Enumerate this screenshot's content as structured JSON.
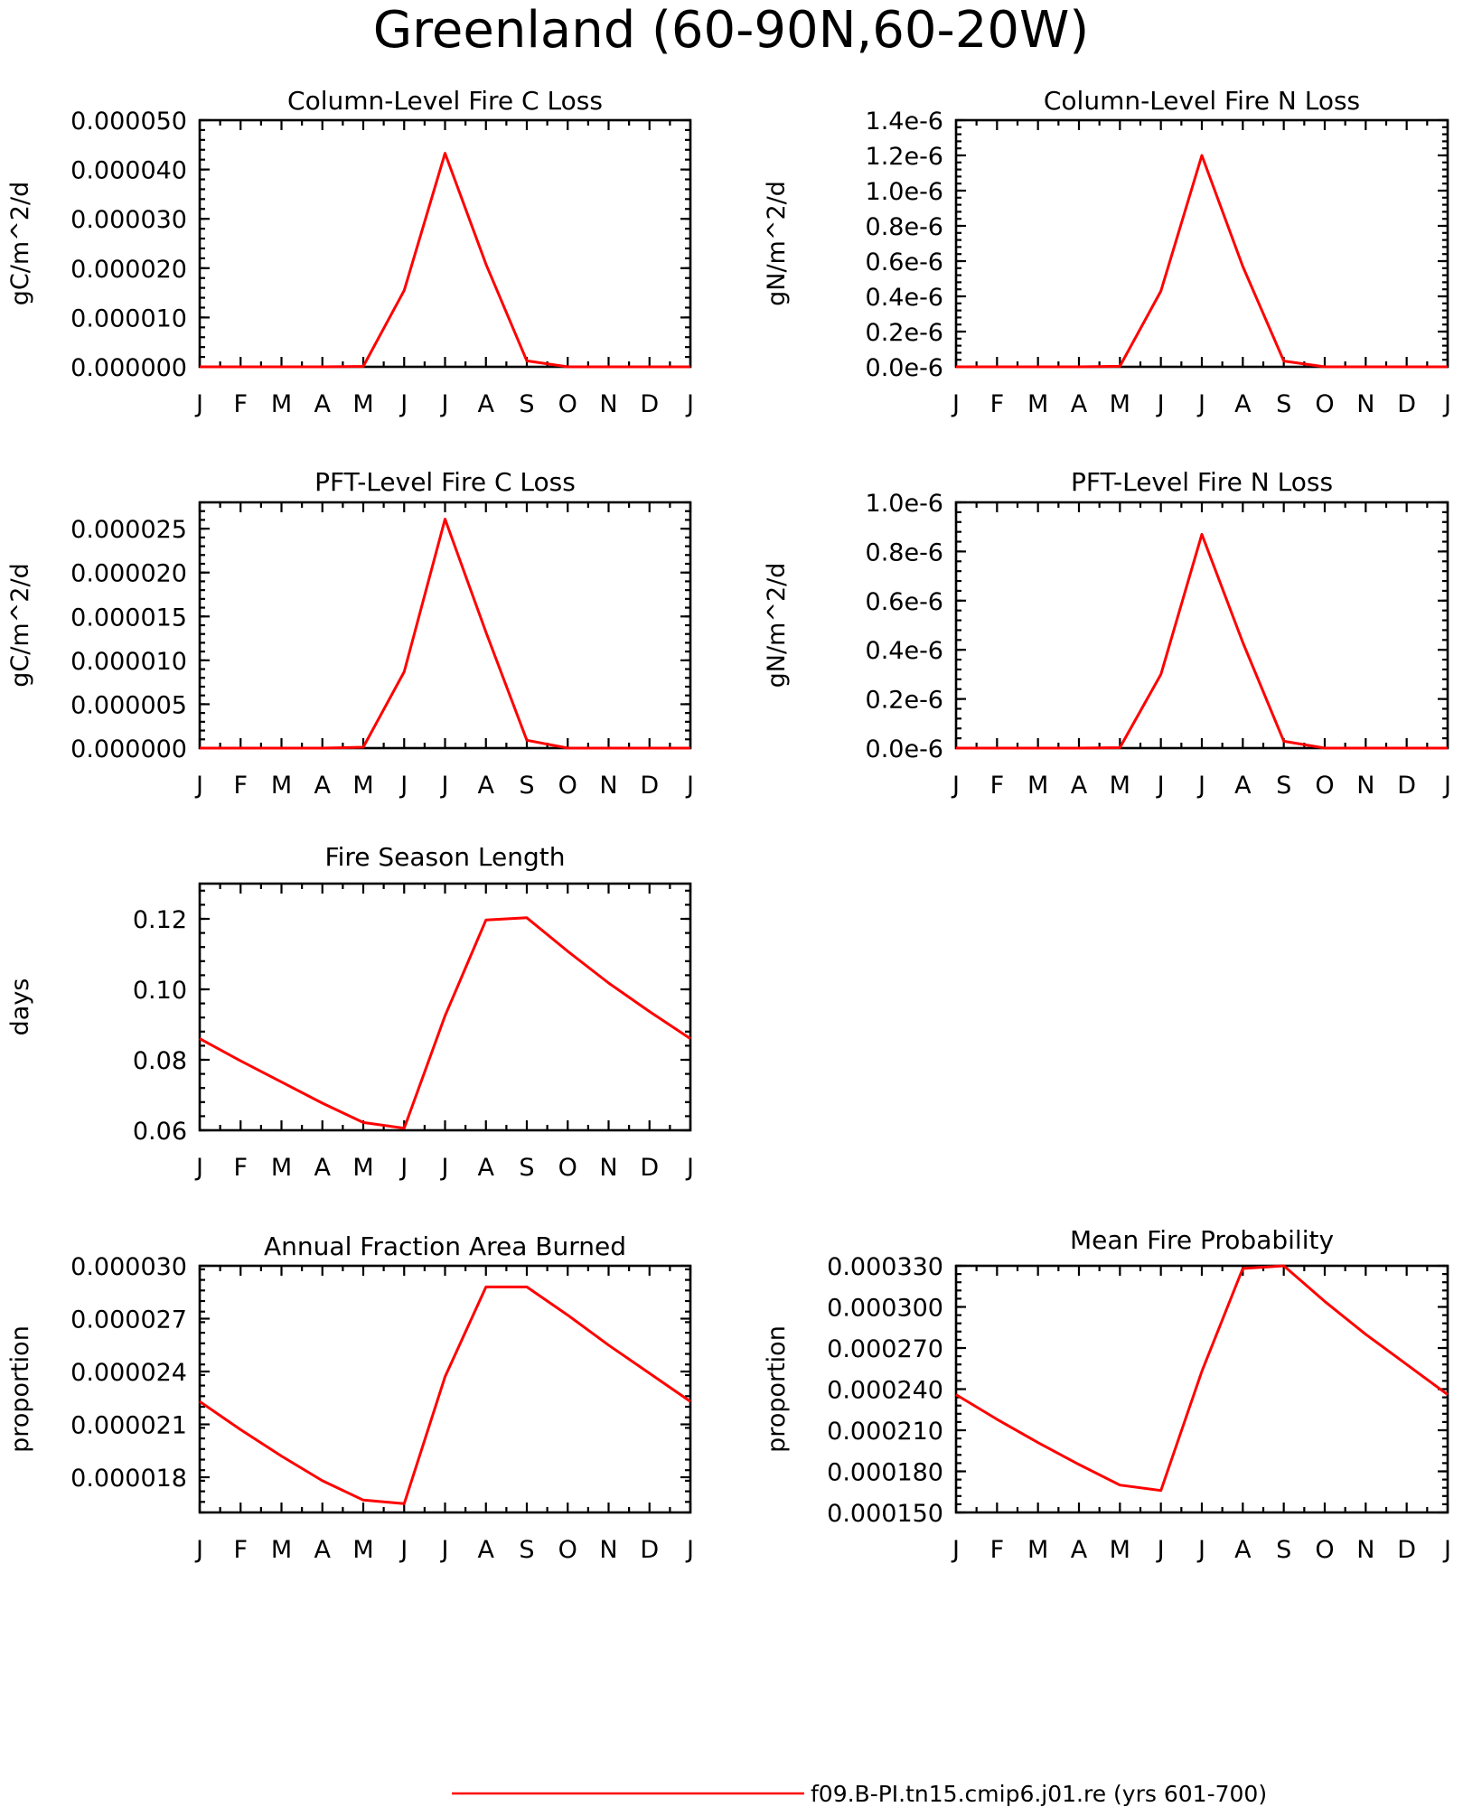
{
  "title": "Greenland (60-90N,60-20W)",
  "legend": {
    "label": "f09.B-PI.tn15.cmip6.j01.re (yrs 601-700)"
  },
  "colors": {
    "series": "#ff0000",
    "axis": "#000000"
  },
  "chart_data": [
    {
      "type": "line",
      "title": "Column-Level Fire C Loss",
      "ylabel": "gC/m^2/d",
      "xlabel": "",
      "categories": [
        "J",
        "F",
        "M",
        "A",
        "M",
        "J",
        "J",
        "A",
        "S",
        "O",
        "N",
        "D",
        "J"
      ],
      "ylim": [
        0,
        5e-05
      ],
      "yticks": [
        0,
        1e-05,
        2e-05,
        3e-05,
        4e-05,
        5e-05
      ],
      "ytick_labels": [
        "0.000000",
        "0.000010",
        "0.000020",
        "0.000030",
        "0.000040",
        "0.000050"
      ],
      "series": [
        {
          "values": [
            0,
            0,
            0,
            0,
            1e-07,
            1.55e-05,
            4.33e-05,
            2.08e-05,
            1.2e-06,
            0,
            0,
            0,
            0
          ]
        }
      ],
      "grid": false
    },
    {
      "type": "line",
      "title": "Column-Level Fire N Loss",
      "ylabel": "gN/m^2/d",
      "xlabel": "",
      "categories": [
        "J",
        "F",
        "M",
        "A",
        "M",
        "J",
        "J",
        "A",
        "S",
        "O",
        "N",
        "D",
        "J"
      ],
      "ylim": [
        0,
        1.4e-06
      ],
      "yticks": [
        0,
        2e-07,
        4e-07,
        6e-07,
        8e-07,
        1e-06,
        1.2e-06,
        1.4e-06
      ],
      "ytick_labels": [
        "0.0e-6",
        "0.2e-6",
        "0.4e-6",
        "0.6e-6",
        "0.8e-6",
        "1.0e-6",
        "1.2e-6",
        "1.4e-6"
      ],
      "series": [
        {
          "values": [
            0,
            0,
            0,
            0,
            3e-09,
            4.3e-07,
            1.2e-06,
            5.7e-07,
            3.3e-08,
            0,
            0,
            0,
            0
          ]
        }
      ],
      "grid": false
    },
    {
      "type": "line",
      "title": "PFT-Level Fire C Loss",
      "ylabel": "gC/m^2/d",
      "xlabel": "",
      "categories": [
        "J",
        "F",
        "M",
        "A",
        "M",
        "J",
        "J",
        "A",
        "S",
        "O",
        "N",
        "D",
        "J"
      ],
      "ylim": [
        0,
        2.8e-05
      ],
      "yticks": [
        0,
        5e-06,
        1e-05,
        1.5e-05,
        2e-05,
        2.5e-05
      ],
      "ytick_labels": [
        "0.000000",
        "0.000005",
        "0.000010",
        "0.000015",
        "0.000020",
        "0.000025"
      ],
      "series": [
        {
          "values": [
            0,
            0,
            0,
            0,
            1e-07,
            8.7e-06,
            2.61e-05,
            1.32e-05,
            9e-07,
            0,
            0,
            0,
            0
          ]
        }
      ],
      "grid": false
    },
    {
      "type": "line",
      "title": "PFT-Level Fire N Loss",
      "ylabel": "gN/m^2/d",
      "xlabel": "",
      "categories": [
        "J",
        "F",
        "M",
        "A",
        "M",
        "J",
        "J",
        "A",
        "S",
        "O",
        "N",
        "D",
        "J"
      ],
      "ylim": [
        0,
        1e-06
      ],
      "yticks": [
        0,
        2e-07,
        4e-07,
        6e-07,
        8e-07,
        1e-06
      ],
      "ytick_labels": [
        "0.0e-6",
        "0.2e-6",
        "0.4e-6",
        "0.6e-6",
        "0.8e-6",
        "1.0e-6"
      ],
      "series": [
        {
          "values": [
            0,
            0,
            0,
            0,
            2e-09,
            3e-07,
            8.7e-07,
            4.3e-07,
            2.8e-08,
            0,
            0,
            0,
            0
          ]
        }
      ],
      "grid": false
    },
    {
      "type": "line",
      "title": "Fire Season Length",
      "ylabel": "days",
      "xlabel": "",
      "categories": [
        "J",
        "F",
        "M",
        "A",
        "M",
        "J",
        "J",
        "A",
        "S",
        "O",
        "N",
        "D",
        "J"
      ],
      "ylim": [
        0.06,
        0.13
      ],
      "yticks": [
        0.06,
        0.08,
        0.1,
        0.12
      ],
      "ytick_labels": [
        "0.06",
        "0.08",
        "0.10",
        "0.12"
      ],
      "series": [
        {
          "values": [
            0.086,
            0.0797,
            0.0737,
            0.0677,
            0.0622,
            0.0606,
            0.0925,
            0.1197,
            0.1203,
            0.1108,
            0.1018,
            0.0937,
            0.086
          ]
        }
      ],
      "grid": false
    },
    {
      "type": "line",
      "title": "Annual Fraction Area Burned",
      "ylabel": "proportion",
      "xlabel": "",
      "categories": [
        "J",
        "F",
        "M",
        "A",
        "M",
        "J",
        "J",
        "A",
        "S",
        "O",
        "N",
        "D",
        "J"
      ],
      "ylim": [
        1.6e-05,
        3e-05
      ],
      "yticks": [
        1.8e-05,
        2.1e-05,
        2.4e-05,
        2.7e-05,
        3e-05
      ],
      "ytick_labels": [
        "0.000018",
        "0.000021",
        "0.000024",
        "0.000027",
        "0.000030"
      ],
      "series": [
        {
          "values": [
            2.23e-05,
            2.07e-05,
            1.92e-05,
            1.78e-05,
            1.67e-05,
            1.65e-05,
            2.37e-05,
            2.88e-05,
            2.88e-05,
            2.72e-05,
            2.55e-05,
            2.39e-05,
            2.23e-05
          ]
        }
      ],
      "grid": false
    },
    {
      "type": "line",
      "title": "Mean Fire Probability",
      "ylabel": "proportion",
      "xlabel": "",
      "categories": [
        "J",
        "F",
        "M",
        "A",
        "M",
        "J",
        "J",
        "A",
        "S",
        "O",
        "N",
        "D",
        "J"
      ],
      "ylim": [
        0.00015,
        0.00033
      ],
      "yticks": [
        0.00015,
        0.00018,
        0.00021,
        0.00024,
        0.00027,
        0.0003,
        0.00033
      ],
      "ytick_labels": [
        "0.000150",
        "0.000180",
        "0.000210",
        "0.000240",
        "0.000270",
        "0.000300",
        "0.000330"
      ],
      "series": [
        {
          "values": [
            0.000236,
            0.000218,
            0.000201,
            0.000185,
            0.00017,
            0.000166,
            0.000253,
            0.000328,
            0.00033,
            0.000304,
            0.00028,
            0.000258,
            0.000236
          ]
        }
      ],
      "grid": false
    }
  ]
}
